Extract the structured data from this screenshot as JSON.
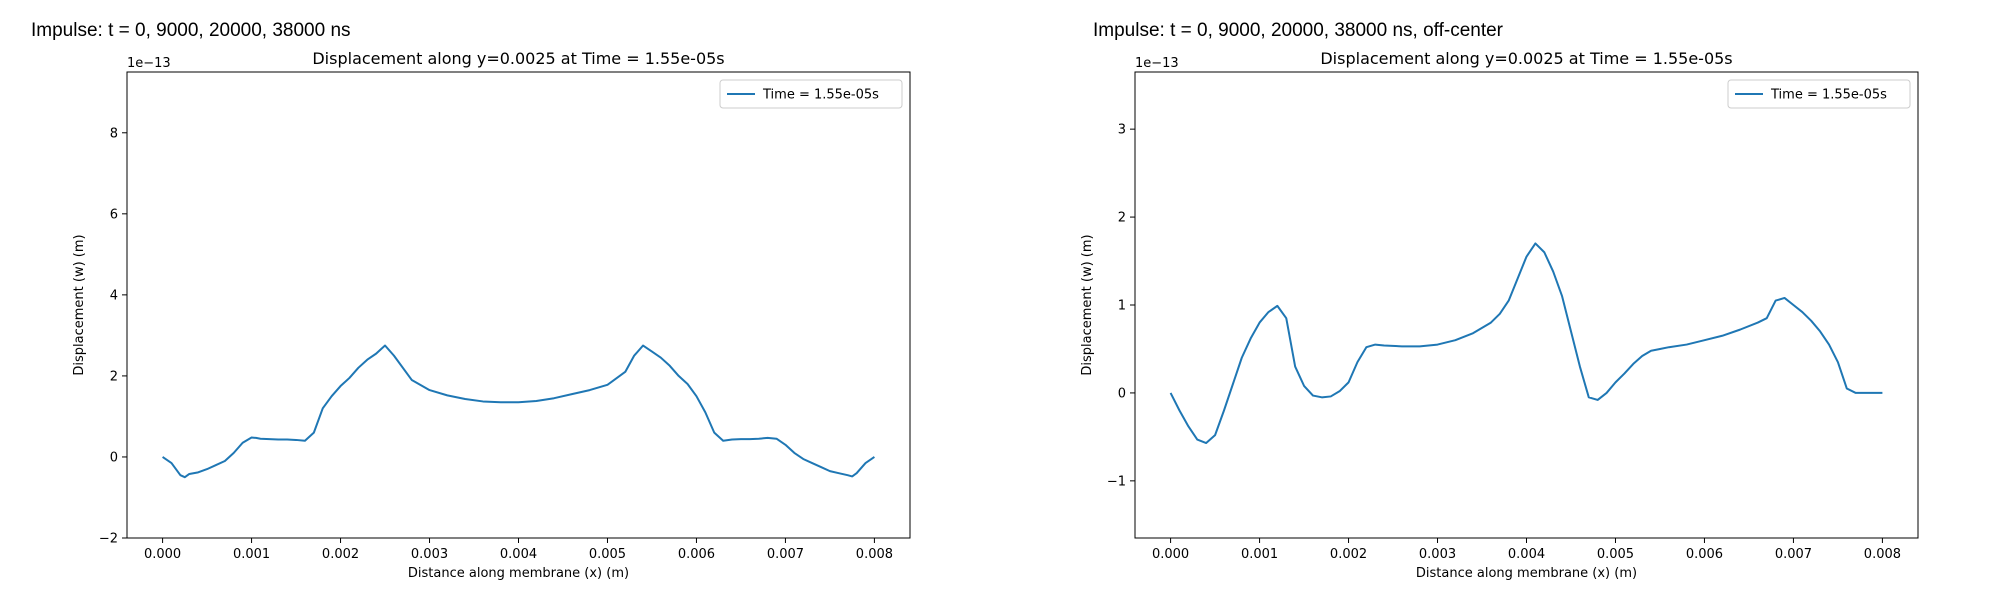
{
  "panels": [
    {
      "title": "Impulse: t = 0, 9000, 20000, 38000 ns"
    },
    {
      "title": "Impulse: t = 0, 9000, 20000, 38000 ns, off-center"
    }
  ],
  "chart_data": [
    {
      "type": "line",
      "title": "Displacement along y=0.0025 at Time = 1.55e-05s",
      "xlabel": "Distance along membrane (x) (m)",
      "ylabel": "Displacement (w) (m)",
      "y_scale_label": "1e−13",
      "xlim": [
        -0.0004,
        0.0084
      ],
      "ylim": [
        -2.0,
        9.5
      ],
      "x_ticks": [
        0.0,
        0.001,
        0.002,
        0.003,
        0.004,
        0.005,
        0.006,
        0.007,
        0.008
      ],
      "x_tick_labels": [
        "0.000",
        "0.001",
        "0.002",
        "0.003",
        "0.004",
        "0.005",
        "0.006",
        "0.007",
        "0.008"
      ],
      "y_ticks": [
        -2,
        0,
        2,
        4,
        6,
        8
      ],
      "y_tick_labels": [
        "−2",
        "0",
        "2",
        "4",
        "6",
        "8"
      ],
      "grid": false,
      "legend_position": "top-right",
      "line_color": "#1f77b4",
      "series": [
        {
          "name": "Time = 1.55e-05s",
          "x": [
            0.0,
            0.0001,
            0.0002,
            0.00025,
            0.0003,
            0.0004,
            0.0005,
            0.0006,
            0.0007,
            0.0008,
            0.0009,
            0.001,
            0.00105,
            0.0011,
            0.0012,
            0.0013,
            0.0014,
            0.0015,
            0.0016,
            0.0017,
            0.0018,
            0.0019,
            0.002,
            0.0021,
            0.0022,
            0.0023,
            0.0024,
            0.0025,
            0.0026,
            0.0028,
            0.003,
            0.0032,
            0.0034,
            0.0036,
            0.0038,
            0.004,
            0.0042,
            0.0044,
            0.0046,
            0.0048,
            0.005,
            0.0052,
            0.0053,
            0.0054,
            0.0055,
            0.0056,
            0.0057,
            0.0058,
            0.0059,
            0.006,
            0.0061,
            0.0062,
            0.0063,
            0.0064,
            0.0065,
            0.0066,
            0.0067,
            0.0068,
            0.0069,
            0.007,
            0.0071,
            0.0072,
            0.0073,
            0.0074,
            0.0075,
            0.0076,
            0.0077,
            0.00775,
            0.0078,
            0.0079,
            0.008
          ],
          "y": [
            0.0,
            -0.15,
            -0.45,
            -0.5,
            -0.42,
            -0.38,
            -0.3,
            -0.2,
            -0.1,
            0.1,
            0.35,
            0.48,
            0.47,
            0.45,
            0.44,
            0.43,
            0.43,
            0.42,
            0.4,
            0.6,
            1.2,
            1.5,
            1.75,
            1.95,
            2.2,
            2.4,
            2.55,
            2.75,
            2.5,
            1.9,
            1.65,
            1.52,
            1.43,
            1.37,
            1.35,
            1.35,
            1.38,
            1.45,
            1.55,
            1.65,
            1.78,
            2.1,
            2.5,
            2.75,
            2.6,
            2.45,
            2.25,
            2.0,
            1.8,
            1.5,
            1.1,
            0.6,
            0.4,
            0.43,
            0.44,
            0.44,
            0.45,
            0.47,
            0.45,
            0.3,
            0.1,
            -0.05,
            -0.15,
            -0.25,
            -0.35,
            -0.4,
            -0.45,
            -0.48,
            -0.4,
            -0.15,
            0.0
          ]
        }
      ]
    },
    {
      "type": "line",
      "title": "Displacement along y=0.0025 at Time = 1.55e-05s",
      "xlabel": "Distance along membrane (x) (m)",
      "ylabel": "Displacement (w) (m)",
      "y_scale_label": "1e−13",
      "xlim": [
        -0.0004,
        0.0084
      ],
      "ylim": [
        -1.65,
        3.65
      ],
      "x_ticks": [
        0.0,
        0.001,
        0.002,
        0.003,
        0.004,
        0.005,
        0.006,
        0.007,
        0.008
      ],
      "x_tick_labels": [
        "0.000",
        "0.001",
        "0.002",
        "0.003",
        "0.004",
        "0.005",
        "0.006",
        "0.007",
        "0.008"
      ],
      "y_ticks": [
        -1,
        0,
        1,
        2,
        3
      ],
      "y_tick_labels": [
        "−1",
        "0",
        "1",
        "2",
        "3"
      ],
      "grid": false,
      "legend_position": "top-right",
      "line_color": "#1f77b4",
      "series": [
        {
          "name": "Time = 1.55e-05s",
          "x": [
            0.0,
            0.0001,
            0.0002,
            0.0003,
            0.0004,
            0.0005,
            0.0006,
            0.0007,
            0.0008,
            0.0009,
            0.001,
            0.0011,
            0.0012,
            0.0013,
            0.0014,
            0.0015,
            0.0016,
            0.0017,
            0.0018,
            0.0019,
            0.002,
            0.0021,
            0.0022,
            0.0023,
            0.0024,
            0.0026,
            0.0028,
            0.003,
            0.0032,
            0.0034,
            0.0036,
            0.0037,
            0.0038,
            0.0039,
            0.004,
            0.0041,
            0.0042,
            0.0043,
            0.0044,
            0.0045,
            0.0046,
            0.0047,
            0.0048,
            0.0049,
            0.005,
            0.0051,
            0.0052,
            0.0053,
            0.0054,
            0.0055,
            0.0056,
            0.0058,
            0.006,
            0.0062,
            0.0064,
            0.0066,
            0.0067,
            0.0068,
            0.0069,
            0.007,
            0.0071,
            0.0072,
            0.0073,
            0.0074,
            0.0075,
            0.0076,
            0.0077,
            0.0078,
            0.0079,
            0.008
          ],
          "y": [
            0.0,
            -0.2,
            -0.38,
            -0.53,
            -0.57,
            -0.48,
            -0.2,
            0.1,
            0.4,
            0.62,
            0.8,
            0.92,
            0.99,
            0.85,
            0.3,
            0.08,
            -0.03,
            -0.05,
            -0.04,
            0.02,
            0.12,
            0.35,
            0.52,
            0.55,
            0.54,
            0.53,
            0.53,
            0.55,
            0.6,
            0.68,
            0.8,
            0.9,
            1.05,
            1.3,
            1.55,
            1.7,
            1.6,
            1.38,
            1.1,
            0.7,
            0.3,
            -0.05,
            -0.08,
            0.0,
            0.12,
            0.22,
            0.33,
            0.42,
            0.48,
            0.5,
            0.52,
            0.55,
            0.6,
            0.65,
            0.72,
            0.8,
            0.85,
            1.05,
            1.08,
            1.0,
            0.92,
            0.82,
            0.7,
            0.55,
            0.35,
            0.05,
            0.0,
            0.0,
            0.0,
            0.0
          ]
        }
      ]
    }
  ]
}
